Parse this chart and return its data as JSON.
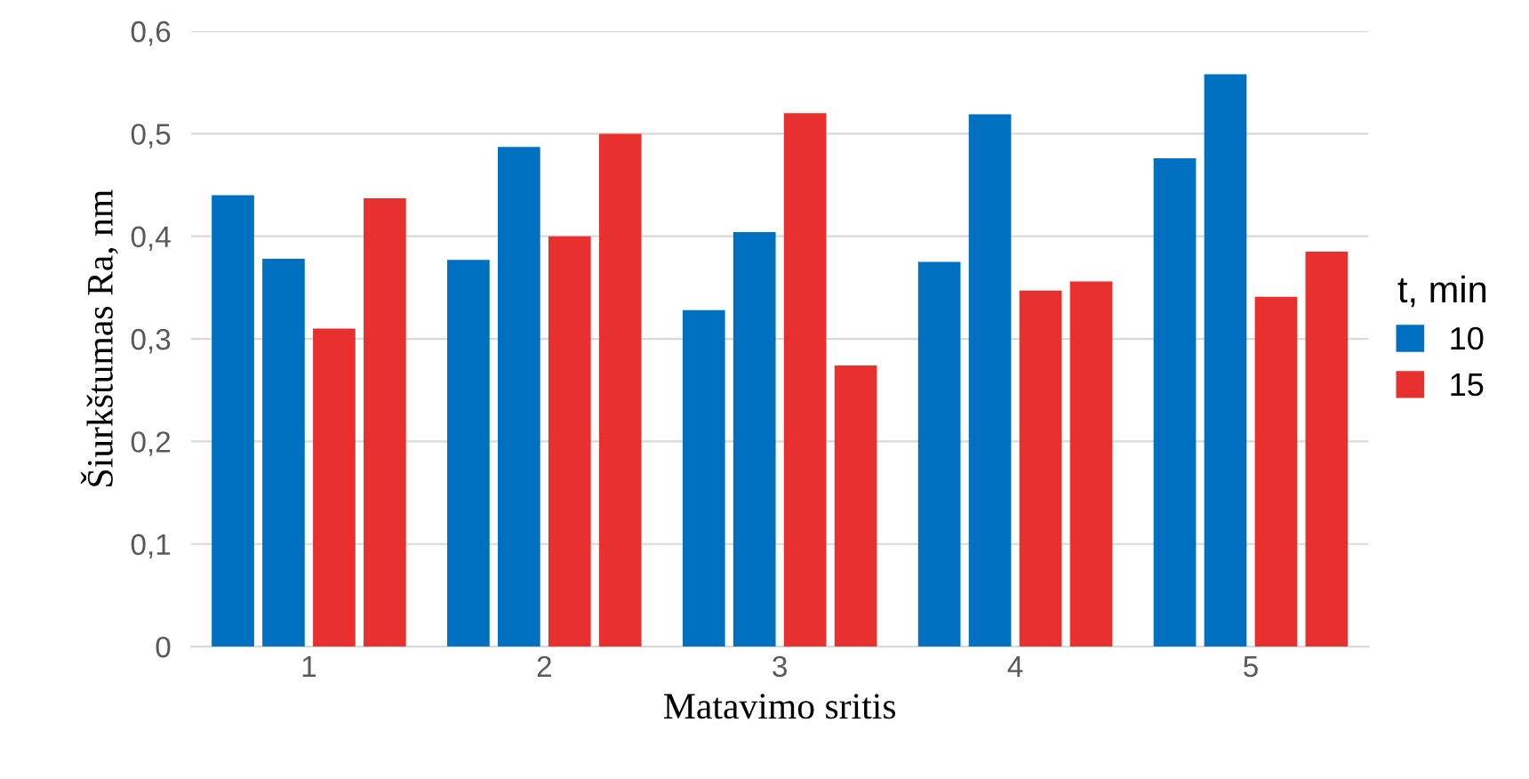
{
  "chart_data": {
    "type": "bar",
    "xlabel": "Matavimo sritis",
    "ylabel": "Šiurkštumas Ra, nm",
    "legend_title": "t, min",
    "categories": [
      "1",
      "2",
      "3",
      "4",
      "5"
    ],
    "series": [
      {
        "name": "10",
        "color": "#0070c0",
        "values": [
          0.44,
          0.377,
          0.328,
          0.375,
          0.476
        ]
      },
      {
        "color": "#0070c0",
        "values": [
          0.378,
          0.487,
          0.404,
          0.519,
          0.558
        ]
      },
      {
        "name": "15",
        "color": "#e8312f",
        "values": [
          0.31,
          0.4,
          0.52,
          0.347,
          0.341
        ]
      },
      {
        "color": "#e8312f",
        "values": [
          0.437,
          0.5,
          0.274,
          0.356,
          0.385
        ]
      }
    ],
    "ylim": [
      0,
      0.6
    ],
    "yticks": [
      {
        "value": 0,
        "label": "0"
      },
      {
        "value": 0.1,
        "label": "0,1"
      },
      {
        "value": 0.2,
        "label": "0,2"
      },
      {
        "value": 0.3,
        "label": "0,3"
      },
      {
        "value": 0.4,
        "label": "0,4"
      },
      {
        "value": 0.5,
        "label": "0,5"
      },
      {
        "value": 0.6,
        "label": "0,6"
      }
    ],
    "grid": "y",
    "legend": "right"
  }
}
